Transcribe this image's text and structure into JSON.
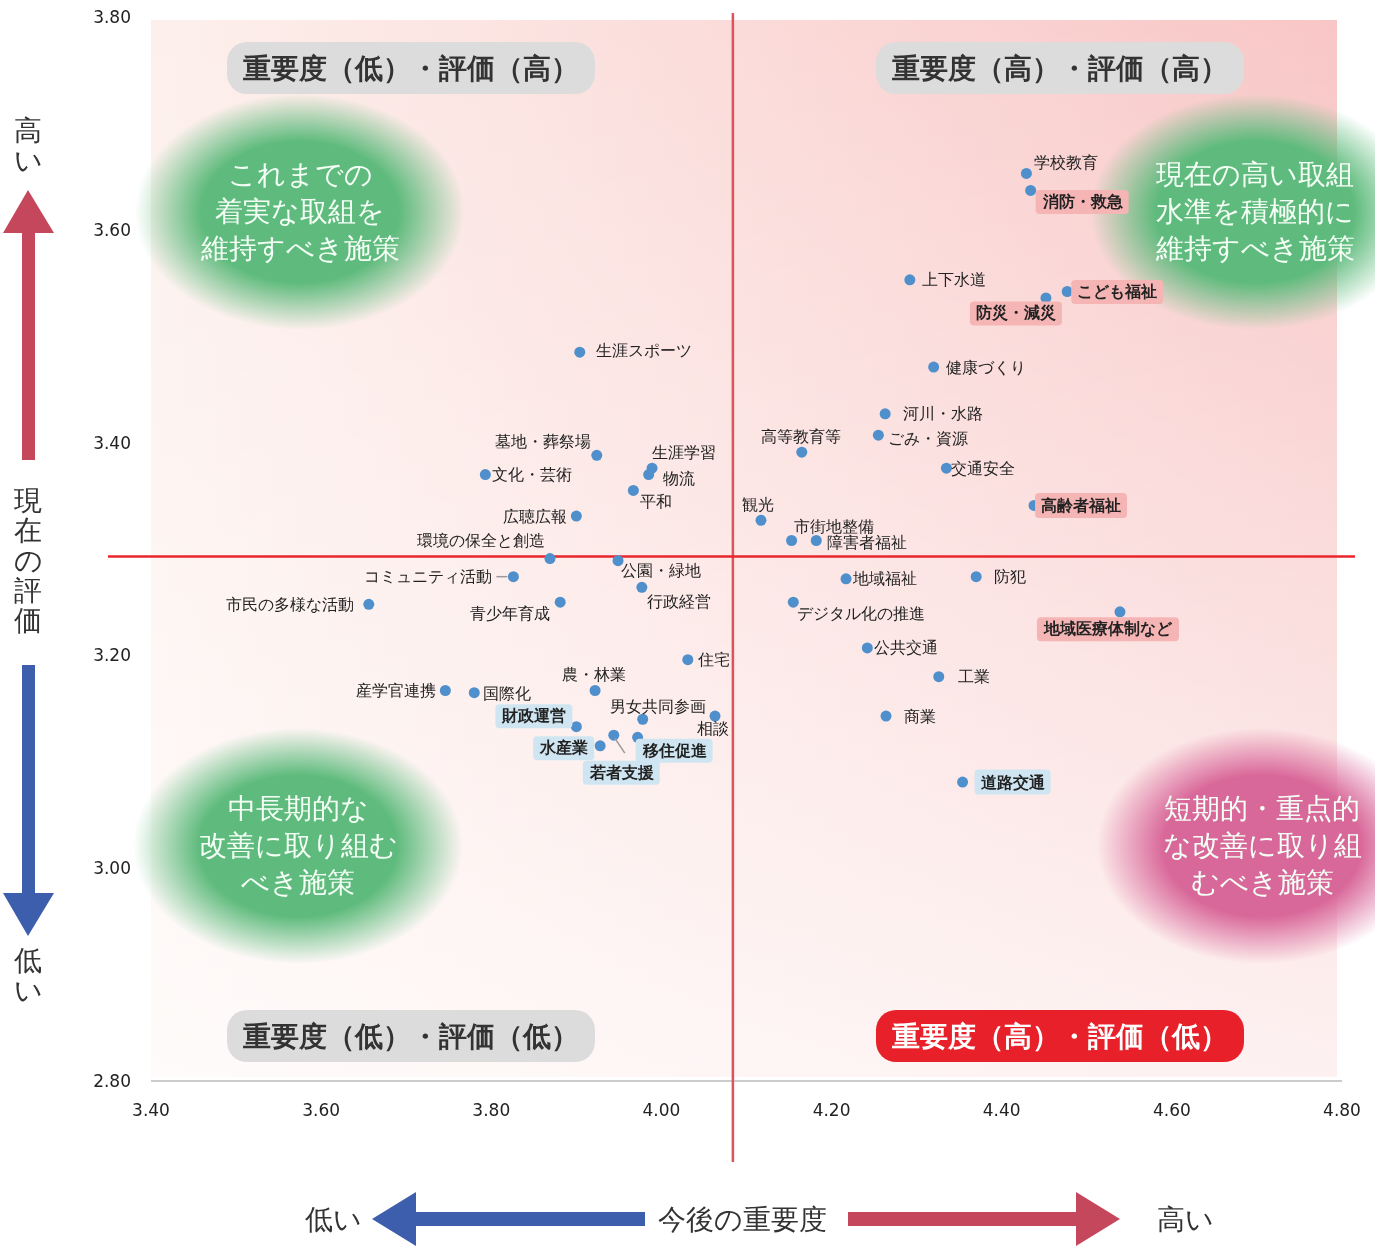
{
  "chart_data": {
    "type": "scatter",
    "xlabel": "今後の重要度",
    "ylabel": "現在の評価",
    "xlim": [
      3.4,
      4.8
    ],
    "ylim": [
      2.8,
      3.8
    ],
    "xticks": [
      {
        "value": 3.4,
        "label": "3.40"
      },
      {
        "value": 3.6,
        "label": "3.60"
      },
      {
        "value": 3.8,
        "label": "3.80"
      },
      {
        "value": 4.0,
        "label": "4.00"
      },
      {
        "value": 4.2,
        "label": "4.20"
      },
      {
        "value": 4.4,
        "label": "4.40"
      },
      {
        "value": 4.6,
        "label": "4.60"
      },
      {
        "value": 4.8,
        "label": "4.80"
      }
    ],
    "yticks": [
      {
        "value": 2.8,
        "label": "2.80"
      },
      {
        "value": 3.0,
        "label": "3.00"
      },
      {
        "value": 3.2,
        "label": "3.20"
      },
      {
        "value": 3.4,
        "label": "3.40"
      },
      {
        "value": 3.6,
        "label": "3.60"
      },
      {
        "value": 3.8,
        "label": "3.80"
      }
    ],
    "grid": false,
    "marker": "circle",
    "series": [
      {
        "color": "#4f8fcc",
        "x": [
          4.429,
          4.434,
          4.292,
          4.477,
          4.452,
          3.904,
          4.32,
          4.263,
          4.255,
          4.165,
          3.924,
          3.989,
          3.985,
          3.793,
          4.335,
          3.967,
          4.438,
          3.9,
          4.117,
          4.153,
          4.182,
          3.869,
          3.949,
          3.826,
          4.217,
          4.37,
          3.977,
          3.656,
          3.881,
          4.155,
          4.539,
          4.242,
          4.031,
          4.326,
          3.746,
          3.78,
          3.922,
          4.264,
          4.063,
          3.978,
          3.9,
          3.944,
          3.972,
          3.928,
          4.354
        ],
        "values": [
          3.653,
          3.637,
          3.553,
          3.542,
          3.536,
          3.485,
          3.471,
          3.427,
          3.407,
          3.391,
          3.388,
          3.376,
          3.37,
          3.37,
          3.376,
          3.355,
          3.341,
          3.331,
          3.327,
          3.308,
          3.308,
          3.291,
          3.289,
          3.274,
          3.272,
          3.274,
          3.264,
          3.248,
          3.25,
          3.25,
          3.241,
          3.207,
          3.196,
          3.18,
          3.167,
          3.165,
          3.167,
          3.143,
          3.143,
          3.14,
          3.133,
          3.125,
          3.123,
          3.115,
          3.081
        ]
      }
    ],
    "ref_lines": [
      {
        "axis": "x",
        "value": 4.084,
        "color": "#e0525a"
      },
      {
        "axis": "y",
        "value": 3.293,
        "color": "#e8262b"
      }
    ],
    "annotations": [
      {
        "text": "学校教育",
        "x": 4.429,
        "y": 3.653
      },
      {
        "text": "消防・救急",
        "x": 4.434,
        "y": 3.637
      },
      {
        "text": "上下水道",
        "x": 4.292,
        "y": 3.553
      },
      {
        "text": "こども福祉",
        "x": 4.477,
        "y": 3.542
      },
      {
        "text": "防災・減災",
        "x": 4.452,
        "y": 3.536
      },
      {
        "text": "生涯スポーツ",
        "x": 3.904,
        "y": 3.485
      },
      {
        "text": "健康づくり",
        "x": 4.32,
        "y": 3.471
      },
      {
        "text": "河川・水路",
        "x": 4.263,
        "y": 3.427
      },
      {
        "text": "ごみ・資源",
        "x": 4.255,
        "y": 3.407
      },
      {
        "text": "高等教育等",
        "x": 4.165,
        "y": 3.391
      },
      {
        "text": "墓地・葬祭場",
        "x": 3.924,
        "y": 3.388
      },
      {
        "text": "生涯学習",
        "x": 3.989,
        "y": 3.376
      },
      {
        "text": "物流",
        "x": 3.985,
        "y": 3.37
      },
      {
        "text": "文化・芸術",
        "x": 3.793,
        "y": 3.37
      },
      {
        "text": "交通安全",
        "x": 4.335,
        "y": 3.376
      },
      {
        "text": "平和",
        "x": 3.967,
        "y": 3.355
      },
      {
        "text": "高齢者福祉",
        "x": 4.438,
        "y": 3.341
      },
      {
        "text": "広聴広報",
        "x": 3.9,
        "y": 3.331
      },
      {
        "text": "観光",
        "x": 4.117,
        "y": 3.327
      },
      {
        "text": "市街地整備",
        "x": 4.153,
        "y": 3.308
      },
      {
        "text": "障害者福祉",
        "x": 4.182,
        "y": 3.308
      },
      {
        "text": "環境の保全と創造",
        "x": 3.869,
        "y": 3.291
      },
      {
        "text": "公園・緑地",
        "x": 3.949,
        "y": 3.289
      },
      {
        "text": "コミュニティ活動",
        "x": 3.826,
        "y": 3.274
      },
      {
        "text": "地域福祉",
        "x": 4.217,
        "y": 3.272
      },
      {
        "text": "防犯",
        "x": 4.37,
        "y": 3.274
      },
      {
        "text": "行政経営",
        "x": 3.977,
        "y": 3.264
      },
      {
        "text": "市民の多様な活動",
        "x": 3.656,
        "y": 3.248
      },
      {
        "text": "青少年育成",
        "x": 3.881,
        "y": 3.25
      },
      {
        "text": "デジタル化の推進",
        "x": 4.155,
        "y": 3.25
      },
      {
        "text": "地域医療体制など",
        "x": 4.539,
        "y": 3.241
      },
      {
        "text": "公共交通",
        "x": 4.242,
        "y": 3.207
      },
      {
        "text": "住宅",
        "x": 4.031,
        "y": 3.196
      },
      {
        "text": "工業",
        "x": 4.326,
        "y": 3.18
      },
      {
        "text": "産学官連携",
        "x": 3.746,
        "y": 3.167
      },
      {
        "text": "国際化",
        "x": 3.78,
        "y": 3.165
      },
      {
        "text": "農・林業",
        "x": 3.922,
        "y": 3.167
      },
      {
        "text": "商業",
        "x": 4.264,
        "y": 3.143
      },
      {
        "text": "相談",
        "x": 4.063,
        "y": 3.143
      },
      {
        "text": "男女共同参画",
        "x": 3.978,
        "y": 3.14
      },
      {
        "text": "財政運営",
        "x": 3.9,
        "y": 3.133
      },
      {
        "text": "若者支援",
        "x": 3.944,
        "y": 3.125
      },
      {
        "text": "移住促進",
        "x": 3.972,
        "y": 3.123
      },
      {
        "text": "水産業",
        "x": 3.928,
        "y": 3.115
      },
      {
        "text": "道路交通",
        "x": 4.354,
        "y": 3.081
      },
      "重要度（低）・評価（高）",
      "重要度（高）・評価（高）",
      "重要度（低）・評価（低）",
      "重要度（高）・評価（低）",
      "これまでの",
      "着実な取組を",
      "維持すべき施策",
      "現在の高い取組",
      "水準を積極的に",
      "維持すべき施策",
      "中長期的な",
      "改善に取り組む",
      "べき施策",
      "短期的・重点的",
      "な改善に取り組",
      "むべき施策",
      "高い",
      "低い",
      "低い",
      "高い"
    ]
  }
}
